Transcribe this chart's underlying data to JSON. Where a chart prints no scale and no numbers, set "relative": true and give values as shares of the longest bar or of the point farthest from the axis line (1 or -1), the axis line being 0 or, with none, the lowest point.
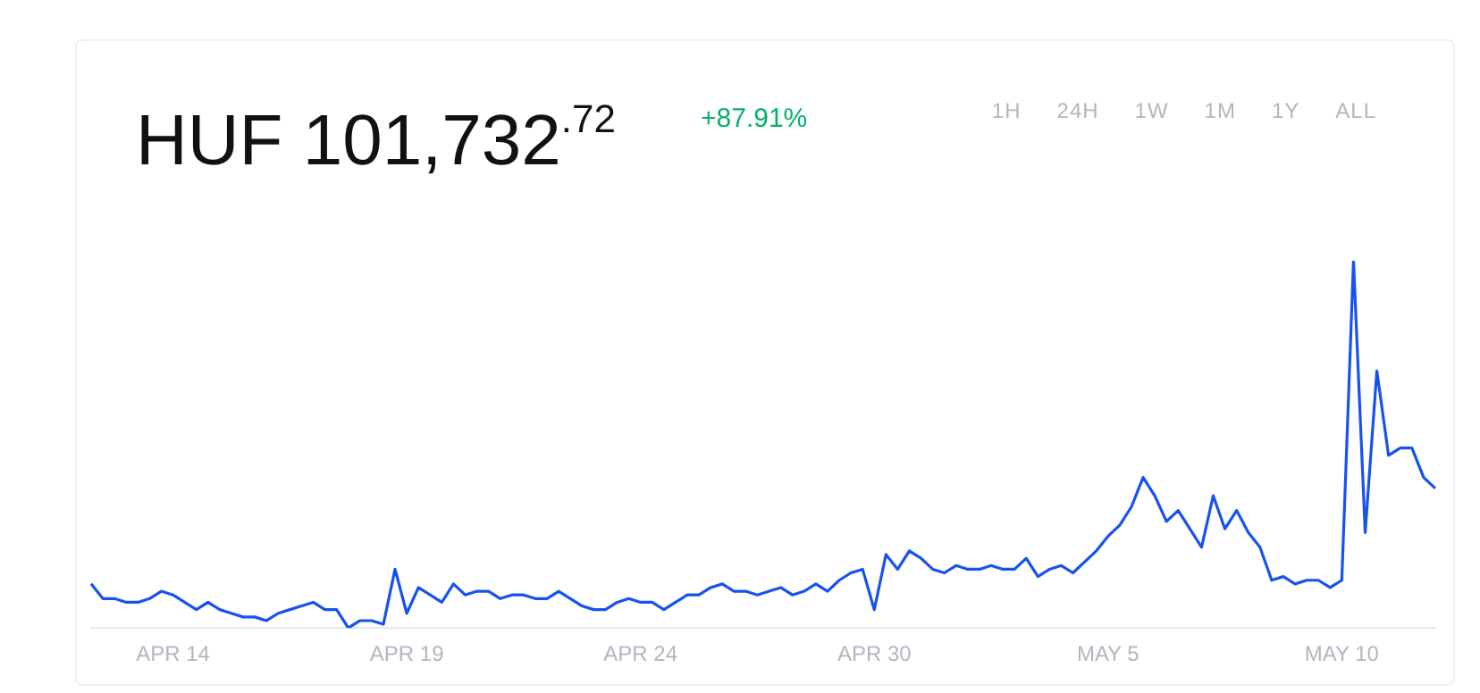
{
  "chart_data": {
    "type": "line",
    "title": "HUF 101,732$^{.72}$",
    "subtitle": "+87.91%",
    "annotations": [
      "1H",
      "24H",
      "1W",
      "1M",
      "1Y",
      "ALL"
    ],
    "relative": true,
    "marker": "none",
    "line_style": "solid",
    "grid": false,
    "legend": false,
    "tick_labels": "x",
    "categories": [
      null,
      null,
      null,
      null,
      null,
      null,
      null,
      "APR 14",
      null,
      null,
      null,
      null,
      null,
      null,
      null,
      null,
      null,
      null,
      null,
      null,
      null,
      null,
      null,
      null,
      null,
      null,
      null,
      "APR 19",
      null,
      null,
      null,
      null,
      null,
      null,
      null,
      null,
      null,
      null,
      null,
      null,
      null,
      null,
      null,
      null,
      null,
      null,
      null,
      "APR 24",
      null,
      null,
      null,
      null,
      null,
      null,
      null,
      null,
      null,
      null,
      null,
      null,
      null,
      null,
      null,
      null,
      null,
      null,
      null,
      "APR 30",
      null,
      null,
      null,
      null,
      null,
      null,
      null,
      null,
      null,
      null,
      null,
      null,
      null,
      null,
      null,
      null,
      null,
      null,
      null,
      "MAY 5",
      null,
      null,
      null,
      null,
      null,
      null,
      null,
      null,
      null,
      null,
      null,
      null,
      null,
      null,
      null,
      null,
      null,
      null,
      null,
      "MAY 10",
      null,
      null,
      null,
      null,
      null,
      null,
      null,
      null
    ],
    "series": [
      {
        "color": "#1652f0",
        "values": [
          0.12,
          0.08,
          0.08,
          0.07,
          0.07,
          0.08,
          0.1,
          0.09,
          0.07,
          0.05,
          0.07,
          0.05,
          0.04,
          0.03,
          0.03,
          0.02,
          0.04,
          0.05,
          0.06,
          0.07,
          0.05,
          0.05,
          0,
          0.02,
          0.02,
          0.01,
          0.16,
          0.04,
          0.11,
          0.09,
          0.07,
          0.12,
          0.09,
          0.1,
          0.1,
          0.08,
          0.09,
          0.09,
          0.08,
          0.08,
          0.1,
          0.08,
          0.06,
          0.05,
          0.05,
          0.07,
          0.08,
          0.07,
          0.07,
          0.05,
          0.07,
          0.09,
          0.09,
          0.11,
          0.12,
          0.1,
          0.1,
          0.09,
          0.1,
          0.11,
          0.09,
          0.1,
          0.12,
          0.1,
          0.13,
          0.15,
          0.16,
          0.05,
          0.2,
          0.16,
          0.21,
          0.19,
          0.16,
          0.15,
          0.17,
          0.16,
          0.16,
          0.17,
          0.16,
          0.16,
          0.19,
          0.14,
          0.16,
          0.17,
          0.15,
          0.18,
          0.21,
          0.25,
          0.28,
          0.33,
          0.41,
          0.36,
          0.29,
          0.32,
          0.27,
          0.22,
          0.36,
          0.27,
          0.32,
          0.26,
          0.22,
          0.13,
          0.14,
          0.12,
          0.13,
          0.13,
          0.11,
          0.13,
          1,
          0.26,
          0.7,
          0.47,
          0.49,
          0.49,
          0.41,
          0.38
        ]
      }
    ]
  }
}
